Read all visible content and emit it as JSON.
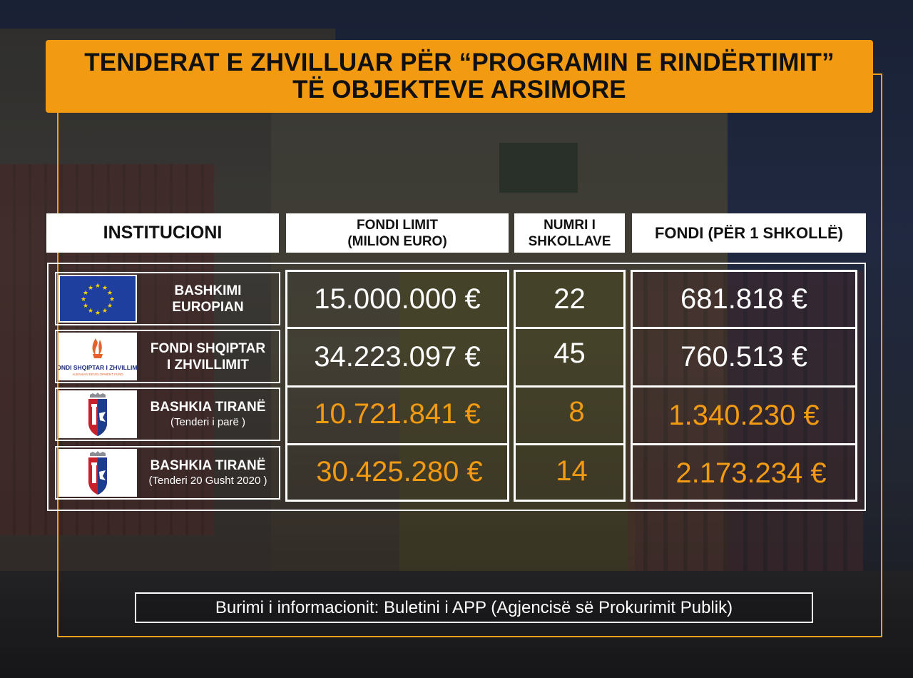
{
  "title": {
    "line1": "TENDERAT E ZHVILLUAR PËR “PROGRAMIN E RINDËRTIMIT”",
    "line2": "TË OBJEKTEVE ARSIMORE"
  },
  "table": {
    "headers": {
      "institution": "INSTITUCIONI",
      "fund_line1": "FONDI  LIMIT",
      "fund_line2": "(MILION EURO)",
      "schools_line1": "NUMRI I",
      "schools_line2": "SHKOLLAVE",
      "per_school": "FONDI (PËR 1 SHKOLLË)"
    },
    "rows": [
      {
        "logo": "eu-flag-icon",
        "name_line1": "BASHKIMI",
        "name_line2": "EUROPIAN",
        "fund": "15.000.000  €",
        "schools": "22",
        "per_school": "681.818  €"
      },
      {
        "logo": "albanian-development-fund-logo",
        "logo_text": "FONDI SHQIPTAR I ZHVILLIMIT",
        "logo_subtext": "ALBANIAN DEVELOPMENT FUND",
        "name_line1": "FONDI SHQIPTAR",
        "name_line2": "I ZHVILLIMIT",
        "fund": "34.223.097  €",
        "schools": "45",
        "per_school": "760.513  €"
      },
      {
        "logo": "tirana-municipality-emblem",
        "name_line1": "BASHKIA TIRANË",
        "note": "(Tenderi i parë )",
        "fund": "10.721.841  €",
        "schools": "8",
        "per_school": "1.340.230  €"
      },
      {
        "logo": "tirana-municipality-emblem",
        "name_line1": "BASHKIA TIRANË",
        "note": "(Tenderi 20 Gusht 2020 )",
        "fund": "30.425.280  €",
        "schools": "14",
        "per_school": "2.173.234  €"
      }
    ]
  },
  "source": "Burimi i informacionit:  Buletini i  APP  (Agjencisë së Prokurimit Publik)",
  "colors": {
    "accent": "#f29b12",
    "value_white": "#ffffff",
    "value_orange": "#f29b12"
  }
}
